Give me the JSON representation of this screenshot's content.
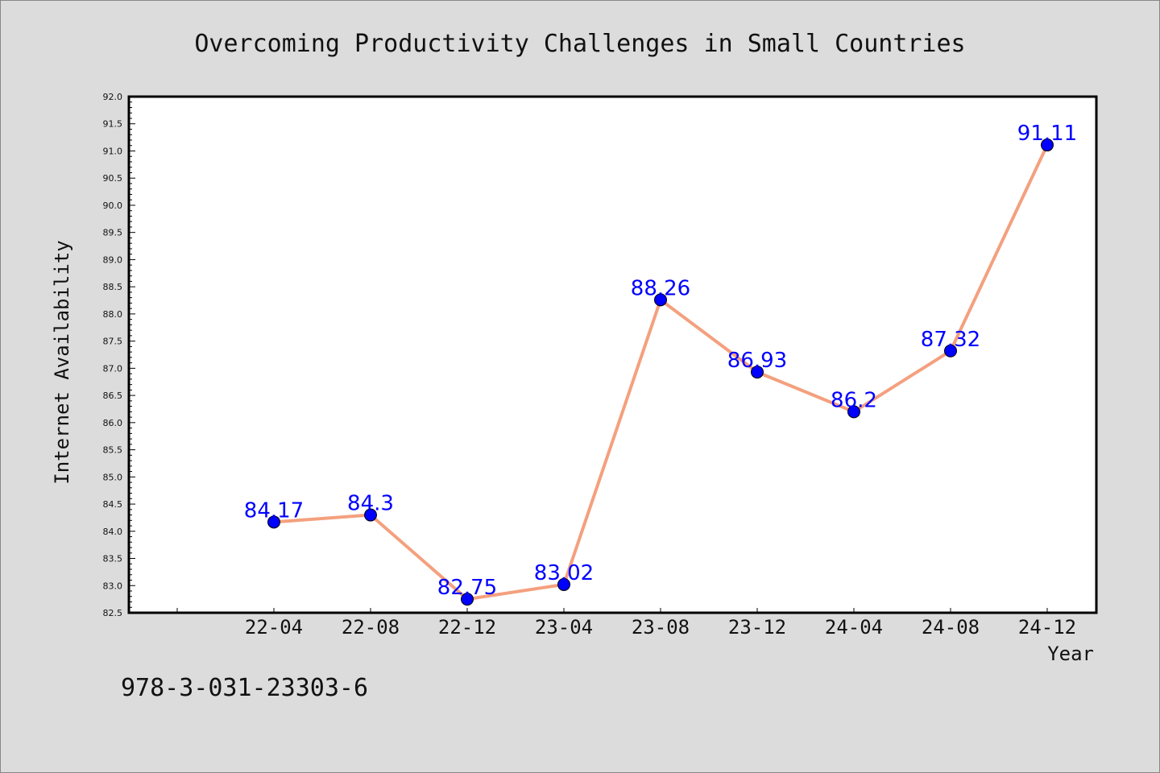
{
  "chart_data": {
    "type": "line",
    "title": "Overcoming Productivity Challenges in Small Countries",
    "xlabel": "Year",
    "ylabel": "Internet Availability",
    "categories": [
      "22-04",
      "22-08",
      "22-12",
      "23-04",
      "23-08",
      "23-12",
      "24-04",
      "24-08",
      "24-12"
    ],
    "series": [
      {
        "values": [
          84.17,
          84.3,
          82.75,
          83.02,
          88.26,
          86.93,
          86.2,
          87.32,
          91.11
        ],
        "labels": [
          "84.17",
          "84.3",
          "82.75",
          "83.02",
          "88.26",
          "86.93",
          "86.2",
          "87.32",
          "91.11"
        ],
        "line_color": "#f4a07e",
        "marker_color": "#0000ff"
      }
    ],
    "ylim": [
      82.5,
      92.0
    ],
    "ytick_step": 0.5,
    "grid": false,
    "legend": "none"
  },
  "footer": {
    "code": "978-3-031-23303-6"
  },
  "colors": {
    "background": "#dcdcdc",
    "plot_background": "#ffffff",
    "axis": "#000000"
  }
}
